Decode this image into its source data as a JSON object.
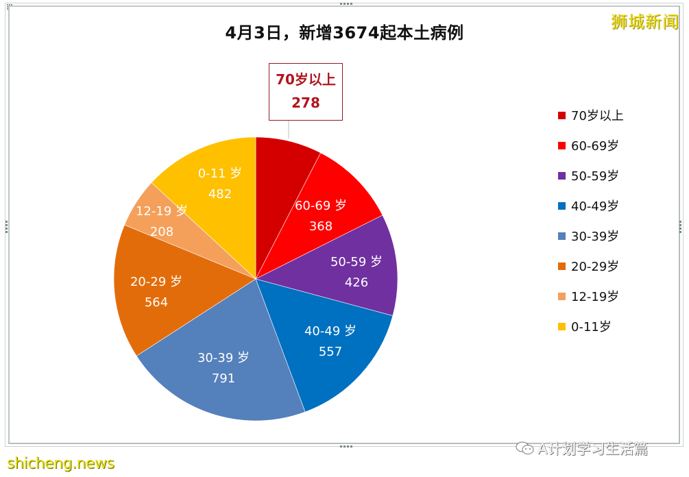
{
  "title": "4月3日，新增3674起本土病例",
  "watermarks": {
    "top_right": "狮城新闻",
    "bottom_left": "shicheng.news",
    "bottom_right": "A计划学习生活篇"
  },
  "callout": {
    "label": "70岁以上",
    "value": "278"
  },
  "legend": [
    {
      "label": "70岁以上",
      "color": "#d40000"
    },
    {
      "label": "60-69岁",
      "color": "#ff0000"
    },
    {
      "label": "50-59岁",
      "color": "#7030a0"
    },
    {
      "label": "40-49岁",
      "color": "#0070c0"
    },
    {
      "label": "30-39岁",
      "color": "#5480bc"
    },
    {
      "label": "20-29岁",
      "color": "#e36c0a"
    },
    {
      "label": "12-19岁",
      "color": "#f4a05a"
    },
    {
      "label": "0-11岁",
      "color": "#ffc000"
    }
  ],
  "slices": [
    {
      "label": "70岁以上",
      "value": "278"
    },
    {
      "label": "60-69 岁",
      "value": "368"
    },
    {
      "label": "50-59 岁",
      "value": "426"
    },
    {
      "label": "40-49 岁",
      "value": "557"
    },
    {
      "label": "30-39 岁",
      "value": "791"
    },
    {
      "label": "20-29 岁",
      "value": "564"
    },
    {
      "label": "12-19 岁",
      "value": "208"
    },
    {
      "label": "0-11 岁",
      "value": "482"
    }
  ],
  "chart_data": {
    "type": "pie",
    "title": "4月3日，新增3674起本土病例",
    "categories": [
      "70岁以上",
      "60-69岁",
      "50-59岁",
      "40-49岁",
      "30-39岁",
      "20-29岁",
      "12-19岁",
      "0-11岁"
    ],
    "values": [
      278,
      368,
      426,
      557,
      791,
      564,
      208,
      482
    ],
    "colors": [
      "#d40000",
      "#ff0000",
      "#7030a0",
      "#0070c0",
      "#5480bc",
      "#e36c0a",
      "#f4a05a",
      "#ffc000"
    ],
    "total": 3674,
    "start_angle": "12 o'clock, clockwise",
    "legend_position": "right",
    "data_labels": "category and value inside slices; 70岁以上 via callout above"
  }
}
